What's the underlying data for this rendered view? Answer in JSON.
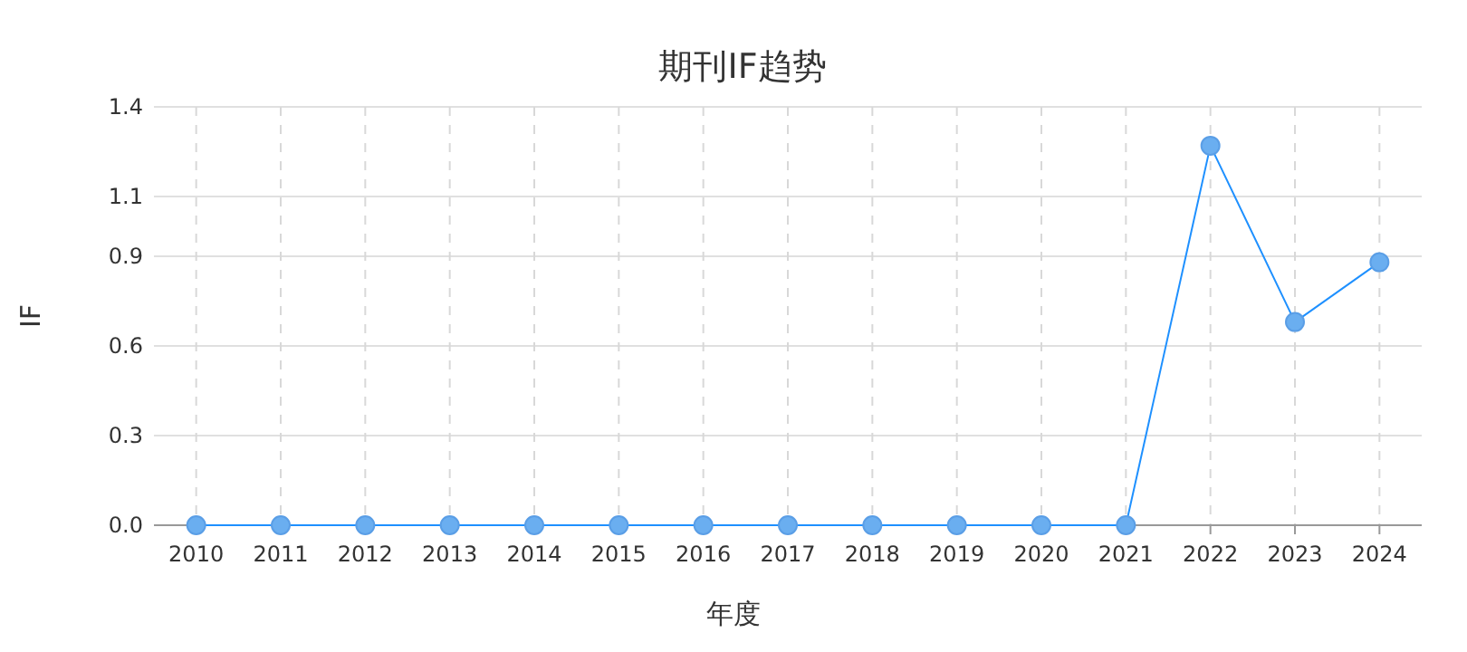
{
  "chart_data": {
    "type": "line",
    "title": "期刊IF趋势",
    "xlabel": "年度",
    "ylabel": "IF",
    "categories": [
      "2010",
      "2011",
      "2012",
      "2013",
      "2014",
      "2015",
      "2016",
      "2017",
      "2018",
      "2019",
      "2020",
      "2021",
      "2022",
      "2023",
      "2024"
    ],
    "series": [
      {
        "color": "#1e90ff",
        "values": [
          0,
          0,
          0,
          0,
          0,
          0,
          0,
          0,
          0,
          0,
          0,
          0,
          1.27,
          0.68,
          0.88
        ]
      }
    ],
    "ylim": [
      0,
      1.4
    ],
    "yticks": [
      {
        "value": 0,
        "label": "0.0"
      },
      0.3,
      0.6,
      0.9,
      1.1,
      1.4
    ],
    "grid": true,
    "marker": "circle",
    "line_style": "solid"
  }
}
